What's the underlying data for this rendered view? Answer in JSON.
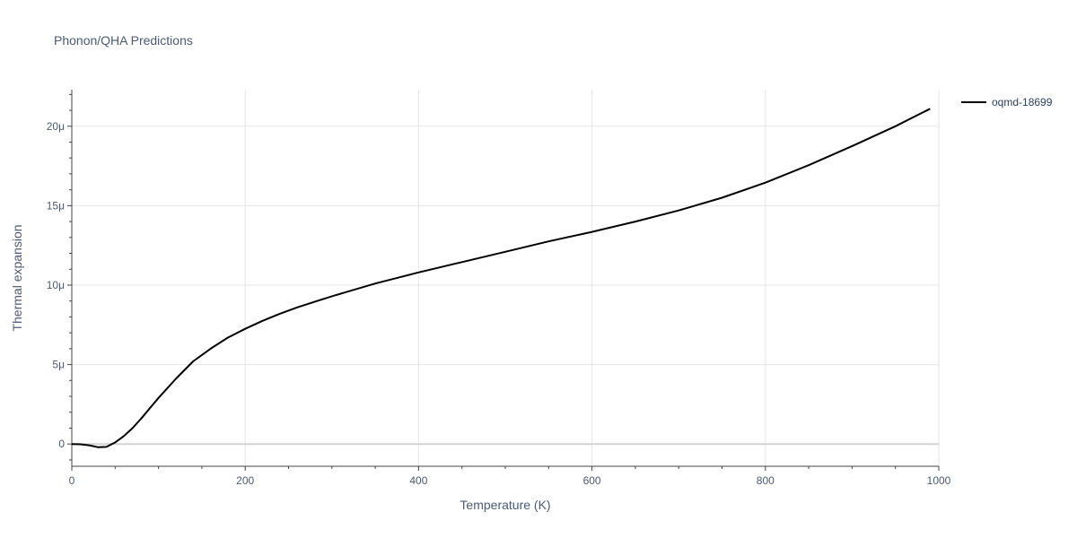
{
  "chart_data": {
    "type": "line",
    "title": "Phonon/QHA Predictions",
    "xlabel": "Temperature (K)",
    "ylabel": "Thermal expansion",
    "xlim": [
      0,
      1000
    ],
    "ylim": [
      -1.4e-06,
      2.23e-05
    ],
    "x_ticks": [
      0,
      200,
      400,
      600,
      800,
      1000
    ],
    "x_tick_labels": [
      "0",
      "200",
      "400",
      "600",
      "800",
      "1000"
    ],
    "y_ticks": [
      0,
      5e-06,
      1e-05,
      1.5e-05,
      2e-05
    ],
    "y_tick_labels": [
      "0",
      "5μ",
      "10μ",
      "15μ",
      "20μ"
    ],
    "grid": true,
    "legend_position": "top-right",
    "colors": {
      "series": "#000000",
      "grid": "#e5e5e5",
      "zero_line": "#d3d3d3",
      "text": "#4a5a78"
    },
    "series": [
      {
        "name": "oqmd-18699",
        "x": [
          0,
          10,
          20,
          30,
          40,
          50,
          60,
          70,
          80,
          90,
          100,
          120,
          140,
          160,
          180,
          200,
          220,
          240,
          260,
          280,
          300,
          350,
          400,
          450,
          500,
          550,
          600,
          650,
          700,
          750,
          800,
          850,
          900,
          950,
          990
        ],
        "y": [
          0,
          -2e-08,
          -8e-08,
          -2e-07,
          -1.8e-07,
          1e-07,
          5e-07,
          1e-06,
          1.6e-06,
          2.25e-06,
          2.9e-06,
          4.1e-06,
          5.2e-06,
          6e-06,
          6.7e-06,
          7.25e-06,
          7.75e-06,
          8.2e-06,
          8.6e-06,
          8.95e-06,
          9.3e-06,
          1.01e-05,
          1.08e-05,
          1.145e-05,
          1.21e-05,
          1.275e-05,
          1.335e-05,
          1.4e-05,
          1.47e-05,
          1.55e-05,
          1.645e-05,
          1.755e-05,
          1.875e-05,
          2e-05,
          2.11e-05
        ]
      }
    ]
  }
}
